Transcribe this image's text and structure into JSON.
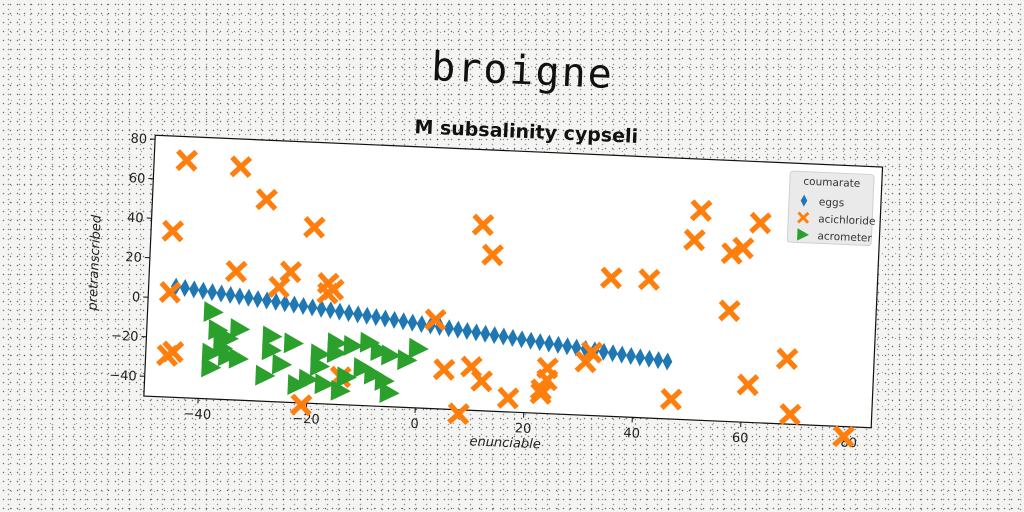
{
  "chart_data": {
    "type": "scatter",
    "suptitle": "broigne",
    "title": "M subsalinity cypseli",
    "xlabel": "enunciable",
    "ylabel": "pretranscribed",
    "xlim": [
      -50,
      84
    ],
    "ylim": [
      -50,
      82
    ],
    "xticks": [
      "−40",
      "−20",
      "0",
      "20",
      "40",
      "60",
      "80"
    ],
    "yticks": [
      "−40",
      "−20",
      "0",
      "20",
      "40",
      "60",
      "80"
    ],
    "grid": false,
    "legend": {
      "title": "coumarate",
      "placement": "upper right"
    },
    "series": [
      {
        "name": "eggs",
        "marker": "thin-diamond",
        "color": "#1f77b4",
        "line": {
          "x_start": -45,
          "x_end": 46,
          "count": 55,
          "y_start": 6,
          "y_end": -21
        }
      },
      {
        "name": "acichloride",
        "marker": "x-filled",
        "color": "#ff7f0e",
        "points": [
          [
            -44,
            70
          ],
          [
            -34,
            68
          ],
          [
            -29,
            52
          ],
          [
            -46,
            34
          ],
          [
            -20,
            39
          ],
          [
            -34,
            15
          ],
          [
            -24,
            16
          ],
          [
            -26,
            8
          ],
          [
            -17,
            11
          ],
          [
            -17,
            6
          ],
          [
            -16,
            8
          ],
          [
            -46,
            3
          ],
          [
            -45,
            -27
          ],
          [
            -46,
            -29
          ],
          [
            -21,
            -51
          ],
          [
            3,
            -5
          ],
          [
            5,
            -30
          ],
          [
            10,
            -28
          ],
          [
            11,
            44
          ],
          [
            13,
            29
          ],
          [
            12,
            -35
          ],
          [
            8,
            -52
          ],
          [
            17,
            -43
          ],
          [
            23,
            -38
          ],
          [
            23,
            -40
          ],
          [
            24,
            -27
          ],
          [
            24,
            -33
          ],
          [
            31,
            -23
          ],
          [
            32,
            -18
          ],
          [
            35,
            20
          ],
          [
            42,
            20
          ],
          [
            47,
            -40
          ],
          [
            50,
            41
          ],
          [
            51,
            56
          ],
          [
            57,
            35
          ],
          [
            59,
            38
          ],
          [
            62,
            51
          ],
          [
            57,
            6
          ],
          [
            61,
            -31
          ],
          [
            68,
            -17
          ],
          [
            69,
            -45
          ],
          [
            79,
            -55
          ],
          [
            -14,
            -36
          ]
        ]
      },
      {
        "name": "acrometer",
        "marker": "triangle-right",
        "color": "#2ca02c",
        "points": [
          [
            -38,
            -6
          ],
          [
            -37,
            -15
          ],
          [
            -36,
            -18
          ],
          [
            -36,
            -24
          ],
          [
            -38,
            -27
          ],
          [
            -38,
            -34
          ],
          [
            -35,
            -28
          ],
          [
            -33,
            -29
          ],
          [
            -33,
            -14
          ],
          [
            -35,
            -19
          ],
          [
            -27,
            -17
          ],
          [
            -27,
            -24
          ],
          [
            -23,
            -20
          ],
          [
            -25,
            -31
          ],
          [
            -28,
            -37
          ],
          [
            -22,
            -41
          ],
          [
            -18,
            -25
          ],
          [
            -18,
            -31
          ],
          [
            -15,
            -19
          ],
          [
            -15,
            -24
          ],
          [
            -12,
            -20
          ],
          [
            -9,
            -18
          ],
          [
            -7,
            -22
          ],
          [
            -5,
            -24
          ],
          [
            -13,
            -36
          ],
          [
            -17,
            -40
          ],
          [
            -14,
            -43
          ],
          [
            -10,
            -31
          ],
          [
            -8,
            -34
          ],
          [
            -6,
            -37
          ],
          [
            -5,
            -43
          ],
          [
            -2,
            -26
          ],
          [
            0,
            -20
          ],
          [
            -20,
            -38
          ]
        ]
      }
    ]
  }
}
